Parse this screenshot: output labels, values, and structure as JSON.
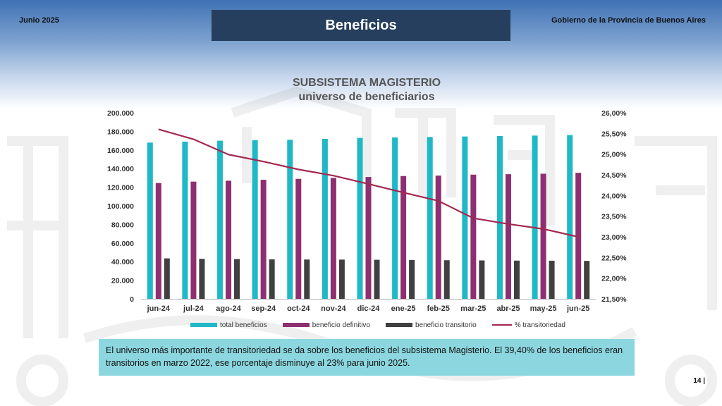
{
  "header": {
    "date": "Junio 2025",
    "title": "Beneficios",
    "org": "Gobierno de la Provincia de Buenos Aires"
  },
  "chart_data": {
    "type": "bar",
    "title": "SUBSISTEMA MAGISTERIO",
    "subtitle": "universo de beneficiarios",
    "categories": [
      "jun-24",
      "jul-24",
      "ago-24",
      "sep-24",
      "oct-24",
      "nov-24",
      "dic-24",
      "ene-25",
      "feb-25",
      "mar-25",
      "abr-25",
      "may-25",
      "jun-25"
    ],
    "series": [
      {
        "name": "total beneficios",
        "type": "bar",
        "axis": "left",
        "color": "#1fb8c6",
        "values": [
          168000,
          169000,
          170000,
          170500,
          171000,
          172000,
          173000,
          173500,
          174000,
          174500,
          175000,
          175500,
          176000
        ]
      },
      {
        "name": "beneficio definitivo",
        "type": "bar",
        "axis": "left",
        "color": "#8e2f72",
        "values": [
          124500,
          126000,
          127000,
          128000,
          129000,
          130000,
          131000,
          132000,
          132500,
          133500,
          134000,
          134500,
          135500
        ]
      },
      {
        "name": "beneficio transitorio",
        "type": "bar",
        "axis": "left",
        "color": "#404040",
        "values": [
          43500,
          43000,
          42800,
          42500,
          42300,
          42200,
          42000,
          41800,
          41500,
          41300,
          41100,
          41000,
          40800
        ]
      },
      {
        "name": "% transitoriedad",
        "type": "line",
        "axis": "right",
        "color": "#a3284f",
        "values": [
          25.6,
          25.36,
          24.99,
          24.82,
          24.63,
          24.48,
          24.28,
          24.07,
          23.87,
          23.45,
          23.31,
          23.19,
          23.0
        ]
      }
    ],
    "ylim": [
      0,
      200000
    ],
    "yticks": [
      "0",
      "20.000",
      "40.000",
      "60.000",
      "80.000",
      "100.000",
      "120.000",
      "140.000",
      "160.000",
      "180.000",
      "200.000"
    ],
    "y2lim": [
      21.5,
      26.0
    ],
    "y2ticks": [
      "21,50%",
      "22,00%",
      "22,50%",
      "23,00%",
      "23,50%",
      "24,00%",
      "24,50%",
      "25,00%",
      "25,50%",
      "26,00%"
    ],
    "legend": "bottom",
    "grid": false
  },
  "note": "El universo más importante de transitoriedad se da sobre los beneficios del subsistema Magisterio. El 39,40% de los beneficios eran transitorios en marzo 2022, ese porcentaje disminuye al 23% para junio 2025.",
  "page_number": "14  |"
}
